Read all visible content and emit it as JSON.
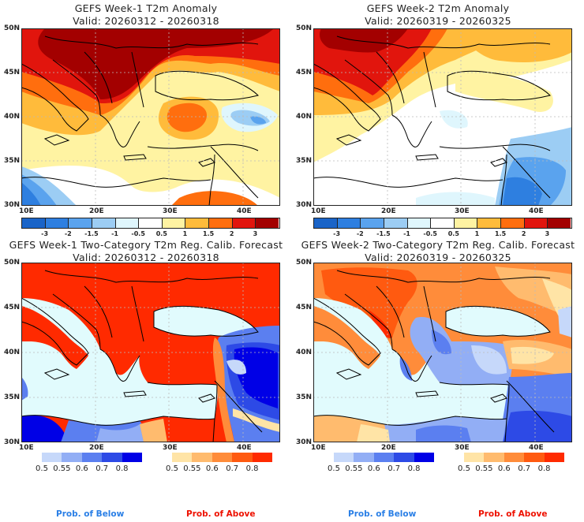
{
  "panels": [
    {
      "id": "week1-anomaly",
      "title_line1": "GEFS Week-1 T2m Anomaly",
      "title_line2": "Valid: 20260312 - 20260318",
      "type": "anomaly"
    },
    {
      "id": "week2-anomaly",
      "title_line1": "GEFS Week-2 T2m Anomaly",
      "title_line2": "Valid: 20260319 - 20260325",
      "type": "anomaly"
    },
    {
      "id": "week1-prob",
      "title_line1": "GEFS Week-1 Two-Category T2m Reg. Calib. Forecast",
      "title_line2": "Valid: 20260312 - 20260318",
      "type": "probability"
    },
    {
      "id": "week2-prob",
      "title_line1": "GEFS Week-2 Two-Category T2m Reg. Calib. Forecast",
      "title_line2": "Valid: 20260319 - 20260325",
      "type": "probability"
    }
  ],
  "axes": {
    "lat_ticks": [
      "50N",
      "45N",
      "40N",
      "35N",
      "30N"
    ],
    "lon_ticks": [
      "10E",
      "20E",
      "30E",
      "40E"
    ],
    "lat_range": [
      30,
      50
    ],
    "lon_range": [
      10,
      45
    ]
  },
  "anomaly_colorbar": {
    "labels": [
      "-3",
      "-2",
      "-1.5",
      "-1",
      "-0.5",
      "0.5",
      "1",
      "1.5",
      "2",
      "3"
    ],
    "colors": [
      "#1a64c8",
      "#2e7fe0",
      "#5aa3ee",
      "#9ccdf4",
      "#dff6fd",
      "#ffffff",
      "#fff3a2",
      "#ffbb3b",
      "#ff6e0e",
      "#e1150d",
      "#a30000"
    ]
  },
  "prob_below_colorbar": {
    "labels": [
      "0.5",
      "0.55",
      "0.6",
      "0.7",
      "0.8"
    ],
    "colors": [
      "#c6d8fa",
      "#92aef5",
      "#5b7ff0",
      "#2d4ae6",
      "#0000e6"
    ],
    "legend_label": "Prob. of Below",
    "legend_color": "#2a7fe6"
  },
  "prob_above_colorbar": {
    "labels": [
      "0.5",
      "0.55",
      "0.6",
      "0.7",
      "0.8"
    ],
    "colors": [
      "#ffe4a6",
      "#ffbb6e",
      "#ff8c3a",
      "#ff5a10",
      "#ff2a00"
    ],
    "legend_label": "Prob. of Above",
    "legend_color": "#ee1100"
  },
  "colors": {
    "sea_prob": "#e1fbfd",
    "coastline": "#000000",
    "grid": "#bbbbbb"
  }
}
